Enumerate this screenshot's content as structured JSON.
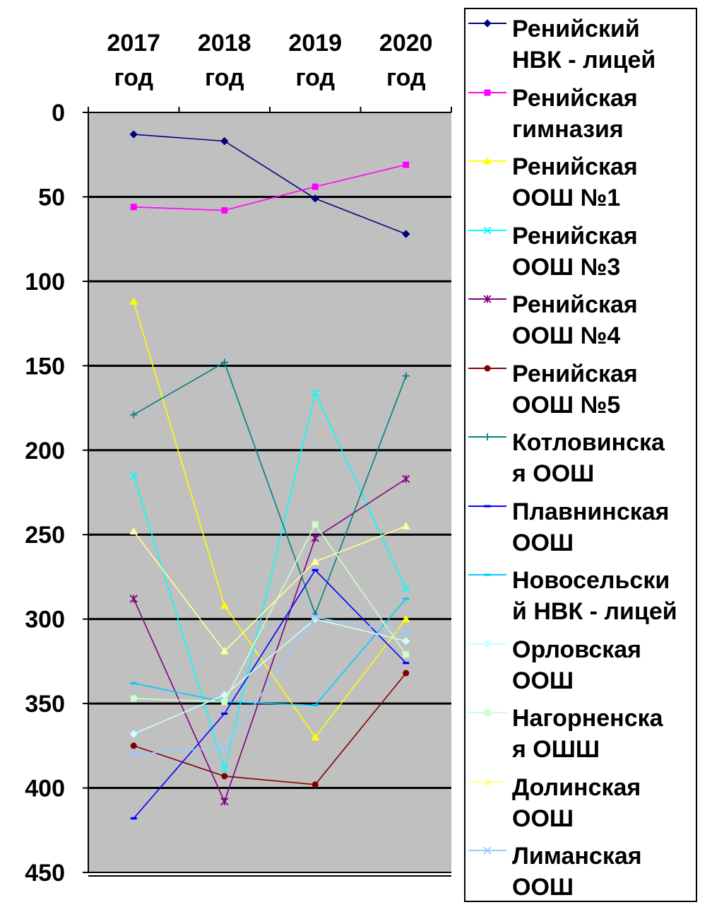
{
  "chart_data": {
    "type": "line",
    "categories": [
      "2017 год",
      "2018 год",
      "2019 год",
      "2020 год"
    ],
    "category_lines": [
      [
        "2017",
        "год"
      ],
      [
        "2018",
        "год"
      ],
      [
        "2019",
        "год"
      ],
      [
        "2020",
        "год"
      ]
    ],
    "y_axis": {
      "min": 0,
      "max": 450,
      "step": 50,
      "reversed": true,
      "tick_labels": [
        "0",
        "50",
        "100",
        "150",
        "200",
        "250",
        "300",
        "350",
        "400",
        "450"
      ]
    },
    "gridlines": true,
    "plot_background": "#c0c0c0",
    "legend_position": "right",
    "series": [
      {
        "name": "Ренийский НВК - лицей",
        "values": [
          13,
          17,
          51,
          72
        ],
        "color": "#000080",
        "marker": "diamond"
      },
      {
        "name": "Ренийская гимназия",
        "values": [
          56,
          58,
          44,
          31
        ],
        "color": "#ff00ff",
        "marker": "square"
      },
      {
        "name": "Ренийская ООШ №1",
        "values": [
          112,
          292,
          370,
          300
        ],
        "color": "#ffff00",
        "marker": "triangle"
      },
      {
        "name": "Ренийская ООШ №3",
        "values": [
          215,
          389,
          166,
          282
        ],
        "color": "#00ffff",
        "marker": "x"
      },
      {
        "name": "Ренийская ООШ №4",
        "values": [
          288,
          408,
          252,
          217
        ],
        "color": "#800080",
        "marker": "star"
      },
      {
        "name": "Ренийская ООШ №5",
        "values": [
          375,
          393,
          398,
          332
        ],
        "color": "#800000",
        "marker": "circle"
      },
      {
        "name": "Котловинская ООШ",
        "values": [
          179,
          148,
          297,
          156
        ],
        "color": "#008080",
        "marker": "plus"
      },
      {
        "name": "Плавнинская ООШ",
        "values": [
          418,
          356,
          271,
          326
        ],
        "color": "#0000ff",
        "marker": "dash"
      },
      {
        "name": "Новосельский НВК - лицей",
        "values": [
          338,
          349,
          351,
          288
        ],
        "color": "#00ccff",
        "marker": "dash"
      },
      {
        "name": "Орловская ООШ",
        "values": [
          368,
          345,
          300,
          313
        ],
        "color": "#ccffff",
        "marker": "diamond"
      },
      {
        "name": "Нагорненская ОШШ",
        "values": [
          347,
          349,
          244,
          321
        ],
        "color": "#ccffcc",
        "marker": "square"
      },
      {
        "name": "Долинская ООШ",
        "values": [
          248,
          319,
          266,
          245
        ],
        "color": "#ffff99",
        "marker": "triangle"
      },
      {
        "name": "Лиманская ООШ",
        "values": [
          380,
          376,
          299,
          308
        ],
        "color": "#99ccff",
        "marker": "x"
      }
    ]
  },
  "legend": {
    "items": [
      {
        "label": "Ренийский\nНВК - лицей"
      },
      {
        "label": "Ренийская\nгимназия"
      },
      {
        "label": "Ренийская\nООШ №1"
      },
      {
        "label": "Ренийская\nООШ №3"
      },
      {
        "label": "Ренийская\nООШ №4"
      },
      {
        "label": "Ренийская\nООШ №5"
      },
      {
        "label": "Котловинска\nя ООШ"
      },
      {
        "label": "Плавнинская\nООШ"
      },
      {
        "label": "Новосельски\nй НВК - лицей"
      },
      {
        "label": "Орловская\nООШ"
      },
      {
        "label": "Нагорненска\nя ОШШ"
      },
      {
        "label": "Долинская\nООШ"
      },
      {
        "label": "Лиманская\nООШ"
      }
    ]
  }
}
